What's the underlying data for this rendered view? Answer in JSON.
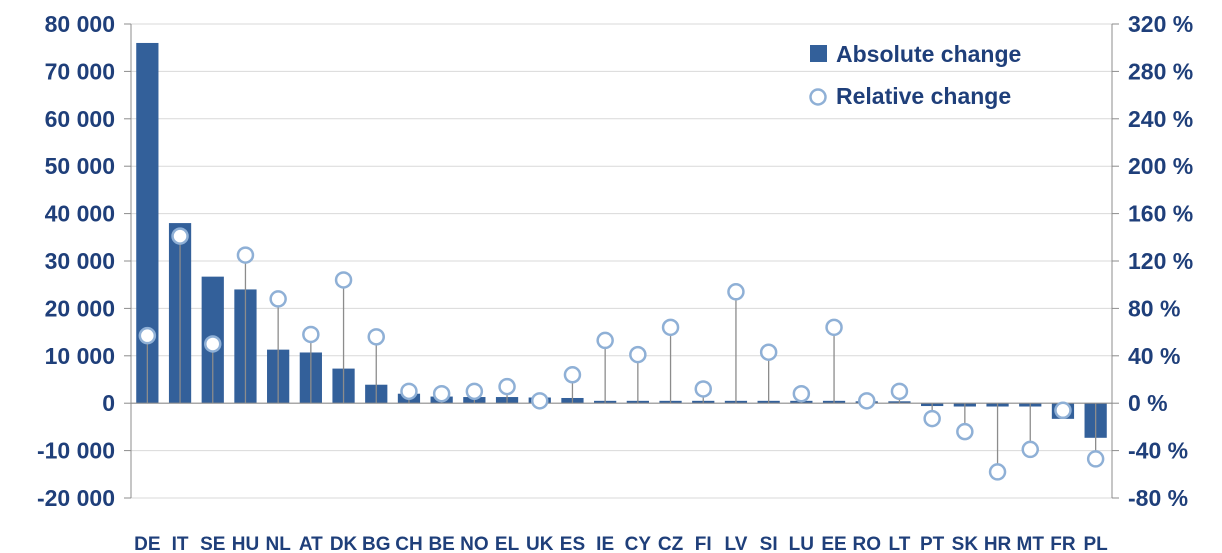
{
  "chart_data": {
    "type": "bar",
    "categories": [
      "DE",
      "IT",
      "SE",
      "HU",
      "NL",
      "AT",
      "DK",
      "BG",
      "CH",
      "BE",
      "NO",
      "EL",
      "UK",
      "ES",
      "IE",
      "CY",
      "CZ",
      "FI",
      "LV",
      "SI",
      "LU",
      "EE",
      "RO",
      "LT",
      "PT",
      "SK",
      "HR",
      "MT",
      "FR",
      "PL"
    ],
    "series": [
      {
        "name": "Absolute change",
        "axis": "left",
        "kind": "bar",
        "values": [
          76000,
          38000,
          26700,
          24000,
          11300,
          10700,
          7300,
          3900,
          2000,
          1400,
          1300,
          1300,
          1200,
          1100,
          500,
          500,
          500,
          500,
          500,
          500,
          500,
          500,
          400,
          400,
          -600,
          -700,
          -700,
          -700,
          -3300,
          -7300
        ]
      },
      {
        "name": "Relative change",
        "axis": "right",
        "kind": "lollipop",
        "values": [
          57,
          141,
          50,
          125,
          88,
          58,
          104,
          56,
          10,
          8,
          10,
          14,
          2,
          24,
          53,
          41,
          64,
          12,
          94,
          43,
          8,
          64,
          2,
          10,
          -13,
          -24,
          -58,
          -39,
          -6,
          -47
        ]
      }
    ],
    "y_left": {
      "min": -20000,
      "max": 80000,
      "step": 10000,
      "tick_labels": [
        "-20 000",
        "-10 000",
        "0",
        "10 000",
        "20 000",
        "30 000",
        "40 000",
        "50 000",
        "60 000",
        "70 000",
        "80 000"
      ]
    },
    "y_right": {
      "min": -80,
      "max": 320,
      "step": 40,
      "tick_labels": [
        "-80 %",
        "-40 %",
        "0 %",
        "40 %",
        "80 %",
        "120 %",
        "160 %",
        "200 %",
        "240 %",
        "280 %",
        "320 %"
      ]
    },
    "legend": {
      "position": "top-right",
      "items": [
        "Absolute change",
        "Relative change"
      ]
    },
    "grid": true,
    "colors": {
      "bar": "#33609a",
      "marker": "#8fb0d6",
      "stem": "#8c8c8c",
      "grid": "#d9d9d9",
      "text": "#1f3f7a"
    }
  }
}
